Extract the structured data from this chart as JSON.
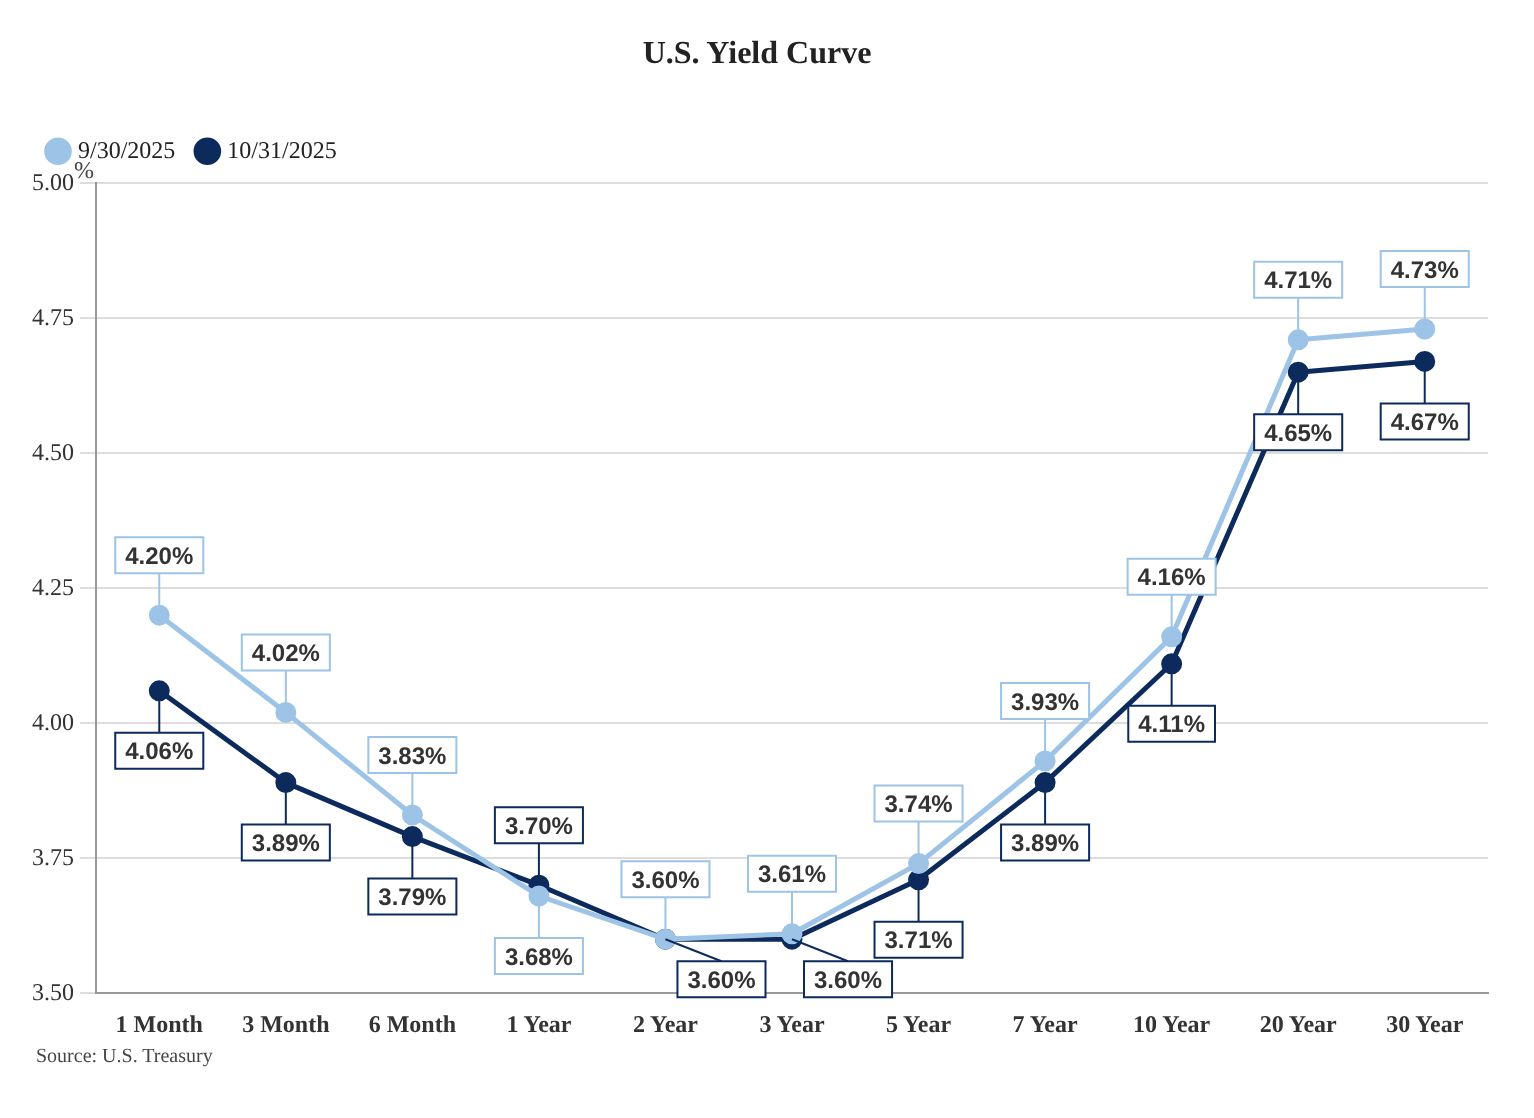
{
  "chart_data": {
    "type": "line",
    "title": "U.S. Yield Curve",
    "ylabel": "%",
    "categories": [
      "1 Month",
      "3 Month",
      "6 Month",
      "1 Year",
      "2 Year",
      "3 Year",
      "5 Year",
      "7 Year",
      "10 Year",
      "20 Year",
      "30 Year"
    ],
    "series": [
      {
        "name": "9/30/2025",
        "color": "#9dc3e6",
        "values": [
          4.2,
          4.02,
          3.83,
          3.68,
          3.6,
          3.61,
          3.74,
          3.93,
          4.16,
          4.71,
          4.73
        ],
        "value_labels": [
          "4.20%",
          "4.02%",
          "3.83%",
          "3.68%",
          "3.60%",
          "3.61%",
          "3.74%",
          "3.93%",
          "4.16%",
          "4.71%",
          "4.73%"
        ]
      },
      {
        "name": "10/31/2025",
        "color": "#0d2a5c",
        "values": [
          4.06,
          3.89,
          3.79,
          3.7,
          3.6,
          3.6,
          3.71,
          3.89,
          4.11,
          4.65,
          4.67
        ],
        "value_labels": [
          "4.06%",
          "3.89%",
          "3.79%",
          "3.70%",
          "3.60%",
          "3.60%",
          "3.71%",
          "3.89%",
          "4.11%",
          "4.65%",
          "4.67%"
        ]
      }
    ],
    "ylim": [
      3.5,
      5.0
    ],
    "yticks": [
      {
        "value": 3.5,
        "label": "3.50"
      },
      {
        "value": 3.75,
        "label": "3.75"
      },
      {
        "value": 4.0,
        "label": "4.00"
      },
      {
        "value": 4.25,
        "label": "4.25"
      },
      {
        "value": 4.5,
        "label": "4.50"
      },
      {
        "value": 4.75,
        "label": "4.75"
      },
      {
        "value": 5.0,
        "label": "5.00"
      }
    ],
    "grid": "y",
    "legend": "top left",
    "marker": "circle",
    "line_style": "solid",
    "annotations": [
      "Source: U.S. Treasury"
    ]
  }
}
